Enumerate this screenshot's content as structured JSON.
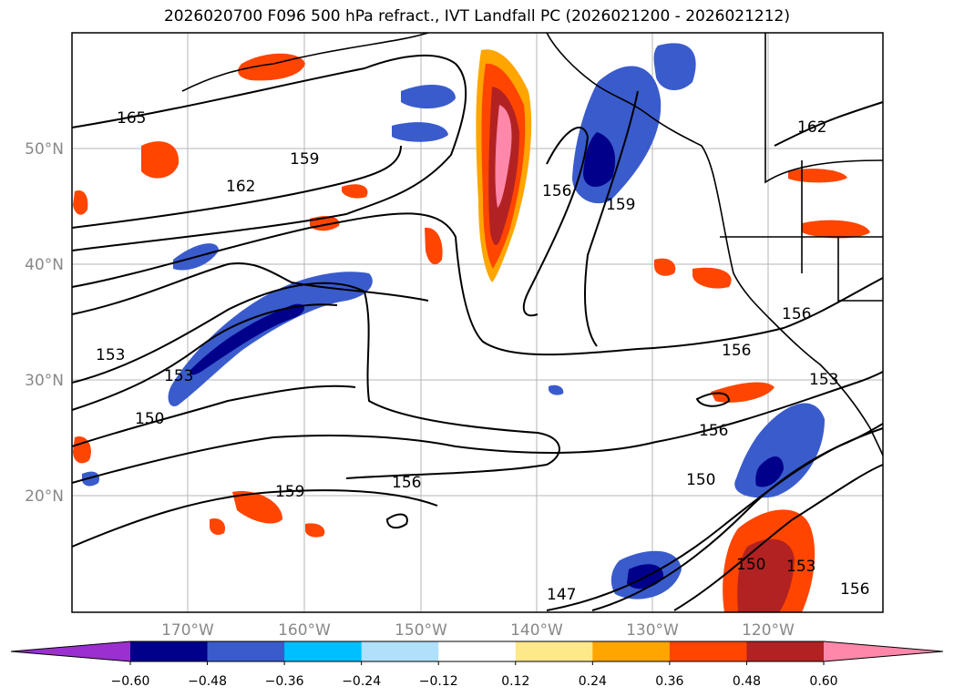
{
  "title": "2026020700 F096 500 hPa refract., IVT Landfall PC (2026021200 - 2026021212)",
  "map": {
    "lon_ticks": [
      "170°W",
      "160°W",
      "150°W",
      "140°W",
      "130°W",
      "120°W"
    ],
    "lat_ticks": [
      "50°N",
      "40°N",
      "30°N",
      "20°N"
    ],
    "contour_labels": [
      "165",
      "162",
      "159",
      "156",
      "159",
      "162",
      "153",
      "153",
      "150",
      "156",
      "153",
      "156",
      "150",
      "159",
      "156",
      "147",
      "150",
      "153",
      "156",
      "156"
    ]
  },
  "colorbar": {
    "ticks": [
      "−0.60",
      "−0.48",
      "−0.36",
      "−0.24",
      "−0.12",
      "0.12",
      "0.24",
      "0.36",
      "0.48",
      "0.60"
    ],
    "colors": [
      "#9b30d0",
      "#00008b",
      "#3a5bcc",
      "#00bfff",
      "#b0e0fa",
      "#ffffff",
      "#fde88a",
      "#ffa500",
      "#ff4500",
      "#b22222",
      "#ff88aa"
    ]
  }
}
